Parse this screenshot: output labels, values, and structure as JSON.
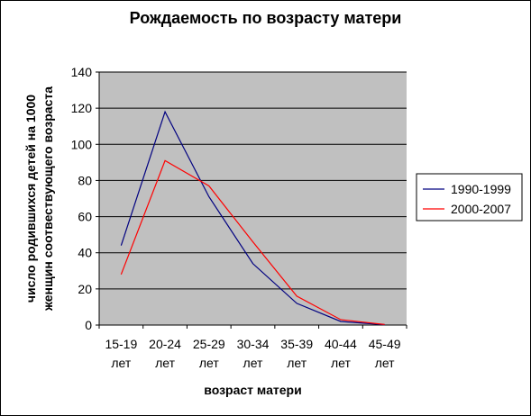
{
  "chart_data": {
    "type": "line",
    "title": "Рождаемость по возрасту матери",
    "xlabel": "возраст матери",
    "ylabel_lines": [
      "число родившихся детей на 1000",
      "женщин соотвествующего возраста"
    ],
    "categories": [
      [
        "15-19",
        "лет"
      ],
      [
        "20-24",
        "лет"
      ],
      [
        "25-29",
        "лет"
      ],
      [
        "30-34",
        "лет"
      ],
      [
        "35-39",
        "лет"
      ],
      [
        "40-44",
        "лет"
      ],
      [
        "45-49",
        "лет"
      ]
    ],
    "ylim": [
      0,
      140
    ],
    "yticks": [
      0,
      20,
      40,
      60,
      80,
      100,
      120,
      140
    ],
    "grid": true,
    "legend_position": "right",
    "plot_background": "#c0c0c0",
    "series": [
      {
        "name": "1990-1999",
        "color": "#000080",
        "values": [
          44,
          118,
          71,
          34,
          12,
          2,
          0.2
        ]
      },
      {
        "name": "2000-2007",
        "color": "#ff0000",
        "values": [
          28,
          91,
          77,
          46,
          16,
          3,
          0.3
        ]
      }
    ]
  }
}
